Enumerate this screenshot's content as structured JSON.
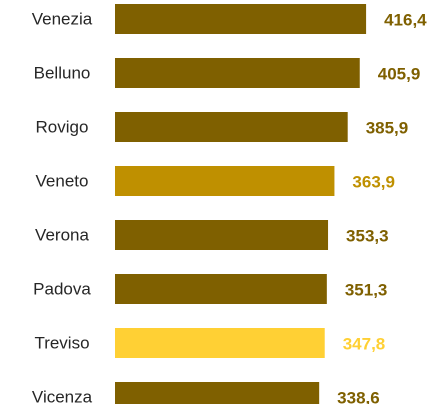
{
  "chart_data": {
    "type": "bar",
    "orientation": "horizontal",
    "categories": [
      "Venezia",
      "Belluno",
      "Rovigo",
      "Veneto",
      "Verona",
      "Padova",
      "Treviso",
      "Vicenza"
    ],
    "values": [
      416.4,
      405.9,
      385.9,
      363.9,
      353.3,
      351.3,
      347.8,
      338.6
    ],
    "value_labels": [
      "416,4",
      "405,9",
      "385,9",
      "363,9",
      "353,3",
      "351,3",
      "347,8",
      "338,6"
    ],
    "colors": [
      "#7f6000",
      "#7f6000",
      "#7f6000",
      "#bf9000",
      "#7f6000",
      "#7f6000",
      "#ffd034",
      "#7f6000"
    ],
    "xlim": [
      0,
      500
    ]
  }
}
